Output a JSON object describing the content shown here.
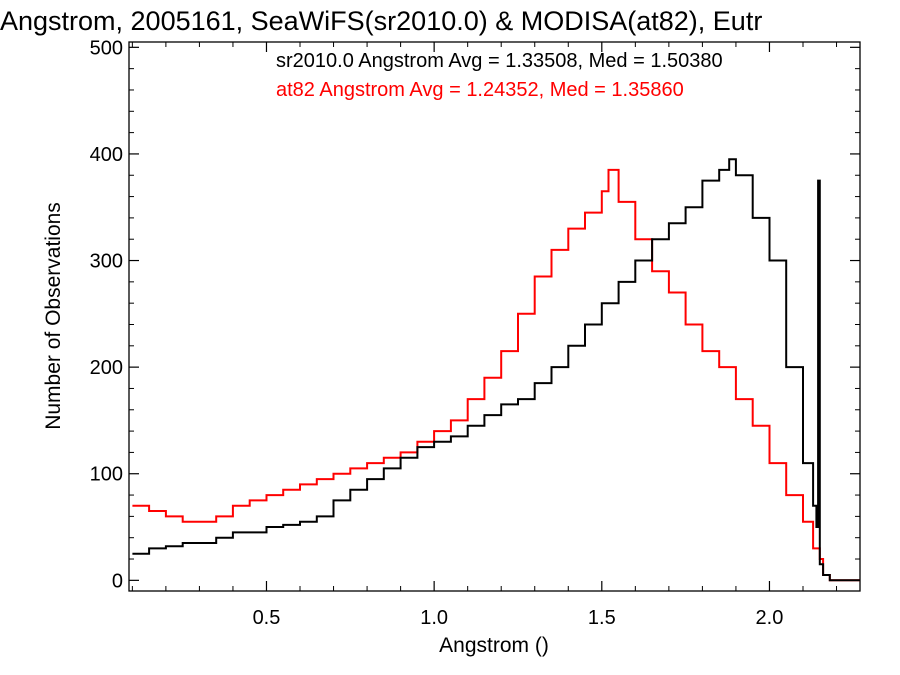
{
  "chart_data": {
    "type": "line",
    "step": true,
    "title": "Angstrom, 2005161, SeaWiFS(sr2010.0) & MODISA(at82), Eutr",
    "xlabel": "Angstrom ()",
    "ylabel": "Number of Observations",
    "xlim": [
      0.09,
      2.27
    ],
    "ylim": [
      -10,
      505
    ],
    "x_ticks": [
      0.5,
      1.0,
      1.5,
      2.0
    ],
    "x_tick_labels": [
      "0.5",
      "1.0",
      "1.5",
      "2.0"
    ],
    "y_ticks": [
      0,
      100,
      200,
      300,
      400,
      500
    ],
    "y_tick_labels": [
      "0",
      "100",
      "200",
      "300",
      "400",
      "500"
    ],
    "grid": false,
    "annotations": [
      {
        "text": "sr2010.0 Angstrom Avg = 1.33508, Med = 1.50380",
        "color": "#000000"
      },
      {
        "text": "at82 Angstrom Avg = 1.24352, Med = 1.35860",
        "color": "#ff0000"
      }
    ],
    "series": [
      {
        "name": "sr2010.0",
        "color": "#000000",
        "x": [
          0.1,
          0.15,
          0.2,
          0.25,
          0.3,
          0.35,
          0.4,
          0.45,
          0.5,
          0.55,
          0.6,
          0.65,
          0.7,
          0.75,
          0.8,
          0.85,
          0.9,
          0.95,
          1.0,
          1.05,
          1.1,
          1.15,
          1.2,
          1.25,
          1.3,
          1.35,
          1.4,
          1.45,
          1.5,
          1.55,
          1.6,
          1.65,
          1.7,
          1.75,
          1.8,
          1.85,
          1.88,
          1.9,
          1.95,
          2.0,
          2.05,
          2.1,
          2.13,
          2.14,
          2.145,
          2.15,
          2.16,
          2.18,
          2.2,
          2.27
        ],
        "y": [
          25,
          30,
          32,
          35,
          35,
          40,
          45,
          45,
          50,
          52,
          55,
          60,
          75,
          85,
          95,
          105,
          115,
          125,
          130,
          135,
          145,
          155,
          165,
          170,
          185,
          200,
          220,
          240,
          260,
          280,
          300,
          320,
          335,
          350,
          375,
          385,
          395,
          380,
          340,
          300,
          200,
          110,
          70,
          50,
          375,
          15,
          5,
          0,
          0,
          0
        ]
      },
      {
        "name": "at82",
        "color": "#ff0000",
        "x": [
          0.1,
          0.15,
          0.2,
          0.25,
          0.3,
          0.35,
          0.4,
          0.45,
          0.5,
          0.55,
          0.6,
          0.65,
          0.7,
          0.75,
          0.8,
          0.85,
          0.9,
          0.95,
          1.0,
          1.05,
          1.1,
          1.15,
          1.2,
          1.25,
          1.3,
          1.35,
          1.4,
          1.45,
          1.5,
          1.52,
          1.55,
          1.6,
          1.65,
          1.7,
          1.75,
          1.8,
          1.85,
          1.9,
          1.95,
          2.0,
          2.05,
          2.1,
          2.13,
          2.15,
          2.16,
          2.18,
          2.2,
          2.27
        ],
        "y": [
          70,
          65,
          60,
          55,
          55,
          60,
          70,
          75,
          80,
          85,
          90,
          95,
          100,
          105,
          110,
          115,
          120,
          130,
          140,
          150,
          170,
          190,
          215,
          250,
          285,
          310,
          330,
          345,
          365,
          385,
          355,
          320,
          290,
          270,
          240,
          215,
          200,
          170,
          145,
          110,
          80,
          55,
          30,
          20,
          5,
          0,
          0,
          0
        ]
      }
    ]
  }
}
